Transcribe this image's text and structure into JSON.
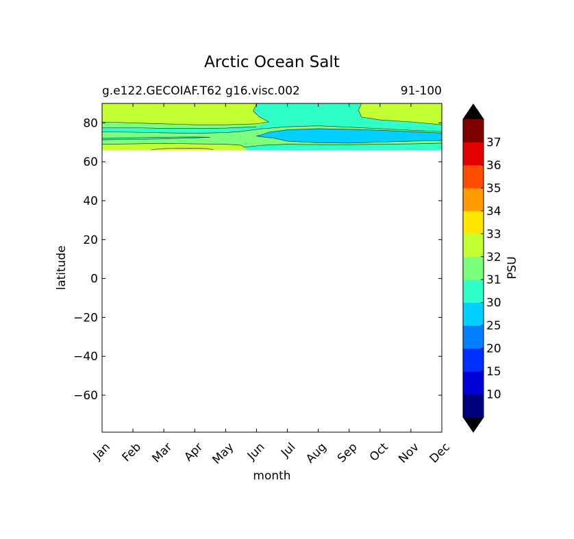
{
  "chart_data": {
    "type": "contour",
    "title": "Arctic Ocean Salt",
    "subtitle_left": "g.e122.GECOIAF.T62 g16.visc.002",
    "subtitle_right": "91-100",
    "xlabel": "month",
    "ylabel": "latitude",
    "x_categories": [
      "Jan",
      "Feb",
      "Mar",
      "Apr",
      "May",
      "Jun",
      "Jul",
      "Aug",
      "Sep",
      "Oct",
      "Nov",
      "Dec"
    ],
    "ylim": [
      -79,
      90
    ],
    "y_ticks": [
      80,
      60,
      40,
      20,
      0,
      -20,
      -40,
      -60
    ],
    "y_tick_labels": [
      "80",
      "60",
      "40",
      "20",
      "0",
      "−20",
      "−40",
      "−60"
    ],
    "data_lat_range": [
      66,
      90
    ],
    "grid": false,
    "colorbar": {
      "label": "PSU",
      "extend": "both",
      "levels": [
        10,
        15,
        20,
        25,
        30,
        31,
        32,
        33,
        34,
        35,
        36,
        37
      ],
      "tick_labels": [
        "10",
        "15",
        "20",
        "25",
        "30",
        "31",
        "32",
        "33",
        "34",
        "35",
        "36",
        "37"
      ],
      "colors": [
        "#00007f",
        "#0000d9",
        "#0030ff",
        "#0080ff",
        "#00d0ff",
        "#30ffc8",
        "#7cff7c",
        "#c4ff34",
        "#ffe600",
        "#ff9a00",
        "#ff4d00",
        "#e30000",
        "#7f0000"
      ],
      "under_color": "#000000",
      "over_color": "#000000"
    },
    "contour_regions": [
      {
        "value_band": "31-32",
        "points": [
          [
            0,
            90
          ],
          [
            11,
            90
          ],
          [
            11,
            66
          ],
          [
            0,
            66
          ]
        ]
      },
      {
        "value_band": "32-33",
        "points": [
          [
            0,
            90
          ],
          [
            5.0,
            90
          ],
          [
            4.9,
            86
          ],
          [
            5.1,
            83
          ],
          [
            5.4,
            80.5
          ],
          [
            5.0,
            79.5
          ],
          [
            4.0,
            79
          ],
          [
            3.0,
            79
          ],
          [
            2.0,
            79.5
          ],
          [
            1.0,
            80
          ],
          [
            0,
            80.5
          ]
        ]
      },
      {
        "value_band": "32-33",
        "points": [
          [
            8.4,
            90
          ],
          [
            11,
            90
          ],
          [
            11,
            79
          ],
          [
            10.0,
            80.5
          ],
          [
            9.0,
            81.5
          ],
          [
            8.4,
            83
          ],
          [
            8.3,
            86.5
          ]
        ]
      },
      {
        "value_band": "32-33",
        "points": [
          [
            0,
            69
          ],
          [
            1.0,
            69.2
          ],
          [
            2.0,
            69.5
          ],
          [
            3.0,
            69.2
          ],
          [
            4.0,
            69.0
          ],
          [
            4.5,
            68.5
          ],
          [
            4.6,
            67.5
          ],
          [
            4.7,
            66
          ],
          [
            0,
            66
          ]
        ]
      },
      {
        "value_band": "30-31",
        "points": [
          [
            5.0,
            90
          ],
          [
            8.4,
            90
          ],
          [
            8.3,
            86.5
          ],
          [
            8.4,
            83
          ],
          [
            9.0,
            81.5
          ],
          [
            10.0,
            80.5
          ],
          [
            11,
            79
          ],
          [
            11,
            75.5
          ],
          [
            10.0,
            76.2
          ],
          [
            9.0,
            77.0
          ],
          [
            8.0,
            77.8
          ],
          [
            7.0,
            78.5
          ],
          [
            6.0,
            78.0
          ],
          [
            5.2,
            77.0
          ],
          [
            4.5,
            75.6
          ],
          [
            4.0,
            75.0
          ],
          [
            3.0,
            74.6
          ],
          [
            2.0,
            74.9
          ],
          [
            1.0,
            75.2
          ],
          [
            0,
            75.4
          ],
          [
            0,
            77.5
          ],
          [
            1.0,
            77.5
          ],
          [
            2.0,
            77.2
          ],
          [
            3.0,
            77.1
          ],
          [
            4.0,
            77.3
          ],
          [
            5.0,
            78.0
          ],
          [
            5.4,
            80.5
          ],
          [
            5.1,
            83
          ],
          [
            4.9,
            86
          ]
        ]
      },
      {
        "value_band": "30-31",
        "points": [
          [
            4.7,
            66
          ],
          [
            4.6,
            67.5
          ],
          [
            5.2,
            68.5
          ],
          [
            6.0,
            69.0
          ],
          [
            7.0,
            68.8
          ],
          [
            8.0,
            68.8
          ],
          [
            9.0,
            69.0
          ],
          [
            10.0,
            69.2
          ],
          [
            11,
            69.6
          ],
          [
            11,
            66
          ]
        ]
      },
      {
        "value_band": "30-31",
        "points": [
          [
            0,
            71.3
          ],
          [
            1.0,
            71.5
          ],
          [
            2.0,
            71.8
          ],
          [
            3.0,
            72.3
          ],
          [
            3.5,
            72.6
          ],
          [
            3.0,
            72.8
          ],
          [
            2.0,
            72.6
          ],
          [
            1.0,
            72.3
          ],
          [
            0,
            72.0
          ]
        ]
      },
      {
        "value_band": "25-30",
        "points": [
          [
            5.0,
            73.2
          ],
          [
            5.6,
            72.0
          ],
          [
            6.0,
            70.6
          ],
          [
            7.0,
            69.8
          ],
          [
            8.0,
            69.6
          ],
          [
            9.0,
            70.1
          ],
          [
            10.0,
            70.6
          ],
          [
            11,
            70.9
          ],
          [
            11,
            74.8
          ],
          [
            10.0,
            75.5
          ],
          [
            9.0,
            76.2
          ],
          [
            8.0,
            76.7
          ],
          [
            7.0,
            77.0
          ],
          [
            6.0,
            76.4
          ],
          [
            5.4,
            75.2
          ],
          [
            5.2,
            74.0
          ]
        ]
      },
      {
        "value_band": "33-34",
        "points": [
          [
            1.6,
            66.2
          ],
          [
            2.0,
            66.8
          ],
          [
            2.8,
            67.0
          ],
          [
            3.4,
            66.8
          ],
          [
            3.6,
            66.2
          ]
        ]
      }
    ],
    "contour_lines": [
      [
        [
          0,
          80.5
        ],
        [
          1.0,
          80
        ],
        [
          2.0,
          79.5
        ],
        [
          3.0,
          79
        ],
        [
          4.0,
          79
        ],
        [
          5.0,
          79.5
        ],
        [
          5.4,
          80.5
        ],
        [
          5.1,
          83
        ],
        [
          4.9,
          86
        ],
        [
          5.0,
          90
        ]
      ],
      [
        [
          8.4,
          90
        ],
        [
          8.3,
          86.5
        ],
        [
          8.4,
          83
        ],
        [
          9.0,
          81.5
        ],
        [
          10.0,
          80.5
        ],
        [
          11,
          79
        ]
      ],
      [
        [
          0,
          77.5
        ],
        [
          1.0,
          77.5
        ],
        [
          2.0,
          77.2
        ],
        [
          3.0,
          77.1
        ],
        [
          4.0,
          77.3
        ],
        [
          5.0,
          78.0
        ]
      ],
      [
        [
          0,
          75.4
        ],
        [
          1.0,
          75.2
        ],
        [
          2.0,
          74.9
        ],
        [
          3.0,
          74.6
        ],
        [
          4.0,
          75.0
        ],
        [
          4.5,
          75.6
        ],
        [
          5.2,
          77.0
        ],
        [
          6.0,
          78.0
        ],
        [
          7.0,
          78.5
        ],
        [
          8.0,
          77.8
        ],
        [
          9.0,
          77.0
        ],
        [
          10.0,
          76.2
        ],
        [
          11,
          75.5
        ]
      ],
      [
        [
          5.0,
          73.2
        ],
        [
          5.6,
          72.0
        ],
        [
          6.0,
          70.6
        ],
        [
          7.0,
          69.8
        ],
        [
          8.0,
          69.6
        ],
        [
          9.0,
          70.1
        ],
        [
          10.0,
          70.6
        ],
        [
          11,
          70.9
        ]
      ],
      [
        [
          5.0,
          73.2
        ],
        [
          5.2,
          74.0
        ],
        [
          5.4,
          75.2
        ],
        [
          6.0,
          76.4
        ],
        [
          7.0,
          77.0
        ],
        [
          8.0,
          76.7
        ],
        [
          9.0,
          76.2
        ],
        [
          10.0,
          75.5
        ],
        [
          11,
          74.8
        ]
      ],
      [
        [
          0,
          72.0
        ],
        [
          1.0,
          72.3
        ],
        [
          2.0,
          72.6
        ],
        [
          3.0,
          72.8
        ],
        [
          3.5,
          72.6
        ],
        [
          3.0,
          72.3
        ],
        [
          2.0,
          71.8
        ],
        [
          1.0,
          71.5
        ],
        [
          0,
          71.3
        ]
      ],
      [
        [
          0,
          69
        ],
        [
          1.0,
          69.2
        ],
        [
          2.0,
          69.5
        ],
        [
          3.0,
          69.2
        ],
        [
          4.0,
          69.0
        ],
        [
          4.5,
          68.5
        ],
        [
          4.6,
          67.5
        ],
        [
          5.2,
          68.5
        ],
        [
          6.0,
          69.0
        ],
        [
          7.0,
          68.8
        ],
        [
          8.0,
          68.8
        ],
        [
          9.0,
          69.0
        ],
        [
          10.0,
          69.2
        ],
        [
          11,
          69.6
        ]
      ],
      [
        [
          1.6,
          66.2
        ],
        [
          2.0,
          66.8
        ],
        [
          2.8,
          67.0
        ],
        [
          3.4,
          66.8
        ],
        [
          3.6,
          66.2
        ]
      ]
    ]
  }
}
